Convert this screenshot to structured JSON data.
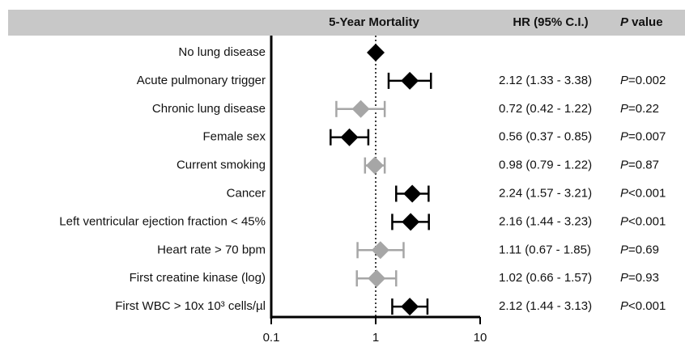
{
  "chart_data": {
    "type": "forest",
    "header": {
      "plot": "5-Year Mortality",
      "hr": "HR (95% C.I.)",
      "p": "P value"
    },
    "categories": [
      "No lung disease",
      "Acute pulmonary trigger",
      "Chronic lung disease",
      "Female sex",
      "Current smoking",
      "Cancer",
      "Left ventricular ejection fraction < 45%",
      "Heart rate > 70 bpm",
      "First creatine kinase (log)",
      "First WBC > 10x 10³ cells/µl"
    ],
    "values": [
      1,
      2.12,
      0.72,
      0.56,
      0.98,
      2.24,
      2.16,
      1.11,
      1.02,
      2.12
    ],
    "lower": [
      null,
      1.33,
      0.42,
      0.37,
      0.79,
      1.57,
      1.44,
      0.67,
      0.66,
      1.44
    ],
    "upper": [
      null,
      3.38,
      1.22,
      0.85,
      1.22,
      3.21,
      3.23,
      1.85,
      1.57,
      3.13
    ],
    "hr_labels": [
      null,
      "2.12 (1.33 - 3.38)",
      "0.72 (0.42 - 1.22)",
      "0.56 (0.37 - 0.85)",
      "0.98 (0.79 - 1.22)",
      "2.24 (1.57 - 3.21)",
      "2.16 (1.44 - 3.23)",
      "1.11 (0.67 - 1.85)",
      "1.02 (0.66 - 1.57)",
      "2.12 (1.44 - 3.13)"
    ],
    "p_labels": [
      null,
      "P=0.002",
      "P=0.22",
      "P=0.007",
      "P=0.87",
      "P<0.001",
      "P<0.001",
      "P=0.69",
      "P=0.93",
      "P<0.001"
    ],
    "colors": [
      "#000000",
      "#000000",
      "#a6a6a6",
      "#000000",
      "#a6a6a6",
      "#000000",
      "#000000",
      "#a6a6a6",
      "#a6a6a6",
      "#000000"
    ],
    "xscale": "log",
    "xlim": [
      0.1,
      10
    ],
    "xticks": [
      0.1,
      1,
      10
    ],
    "reference_line": 1
  }
}
